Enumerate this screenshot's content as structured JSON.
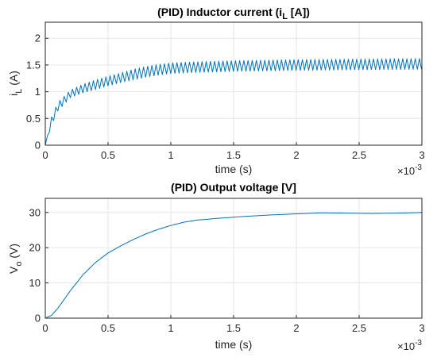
{
  "chart_data": [
    {
      "type": "line",
      "title": "(PID) Inductor current (i",
      "title_sub": "L",
      "title_tail": " [A])",
      "xlabel": "time (s)",
      "ylabel": "i",
      "ylabel_sub": "L",
      "ylabel_tail": " (A)",
      "x_exponent_base": "×10",
      "x_exponent": "-3",
      "xlim": [
        0,
        3
      ],
      "ylim": [
        0,
        2.3
      ],
      "xticks": [
        "0",
        "0.5",
        "1",
        "1.5",
        "2",
        "2.5",
        "3"
      ],
      "yticks": [
        "0",
        "0.5",
        "1",
        "1.5",
        "2"
      ],
      "grid": true,
      "line_color": "#0072BD",
      "series": [
        {
          "x": [
            0,
            0.05,
            0.1,
            0.2,
            0.3,
            0.4,
            0.5,
            0.6,
            0.7,
            0.8,
            0.9,
            1.0,
            1.2,
            1.5,
            2.0,
            2.5,
            3.0
          ],
          "mean": [
            0,
            0.45,
            0.72,
            0.96,
            1.06,
            1.13,
            1.2,
            1.26,
            1.32,
            1.37,
            1.41,
            1.44,
            1.46,
            1.48,
            1.5,
            1.51,
            1.52
          ],
          "ripple_amplitude": [
            0,
            0.08,
            0.08,
            0.07,
            0.08,
            0.09,
            0.09,
            0.09,
            0.1,
            0.1,
            0.1,
            0.1,
            0.1,
            0.1,
            0.1,
            0.1,
            0.1
          ],
          "ripple_period": 0.0333
        }
      ]
    },
    {
      "type": "line",
      "title": "(PID) Output voltage [V]",
      "xlabel": "time (s)",
      "ylabel": "V",
      "ylabel_sub": "o",
      "ylabel_tail": " (V)",
      "x_exponent_base": "×10",
      "x_exponent": "-3",
      "xlim": [
        0,
        3
      ],
      "ylim": [
        0,
        34
      ],
      "xticks": [
        "0",
        "0.5",
        "1",
        "1.5",
        "2",
        "2.5",
        "3"
      ],
      "yticks": [
        "0",
        "10",
        "20",
        "30"
      ],
      "grid": true,
      "line_color": "#0072BD",
      "series": [
        {
          "x": [
            0,
            0.05,
            0.1,
            0.2,
            0.3,
            0.4,
            0.5,
            0.6,
            0.7,
            0.8,
            0.9,
            1.0,
            1.1,
            1.2,
            1.4,
            1.6,
            1.8,
            2.0,
            2.2,
            2.4,
            2.6,
            2.8,
            3.0
          ],
          "y": [
            0,
            0.8,
            2.8,
            7.8,
            12.3,
            15.8,
            18.5,
            20.5,
            22.3,
            23.9,
            25.2,
            26.3,
            27.2,
            27.8,
            28.4,
            28.9,
            29.3,
            29.6,
            29.9,
            29.8,
            29.7,
            29.8,
            30.0
          ]
        }
      ]
    }
  ]
}
